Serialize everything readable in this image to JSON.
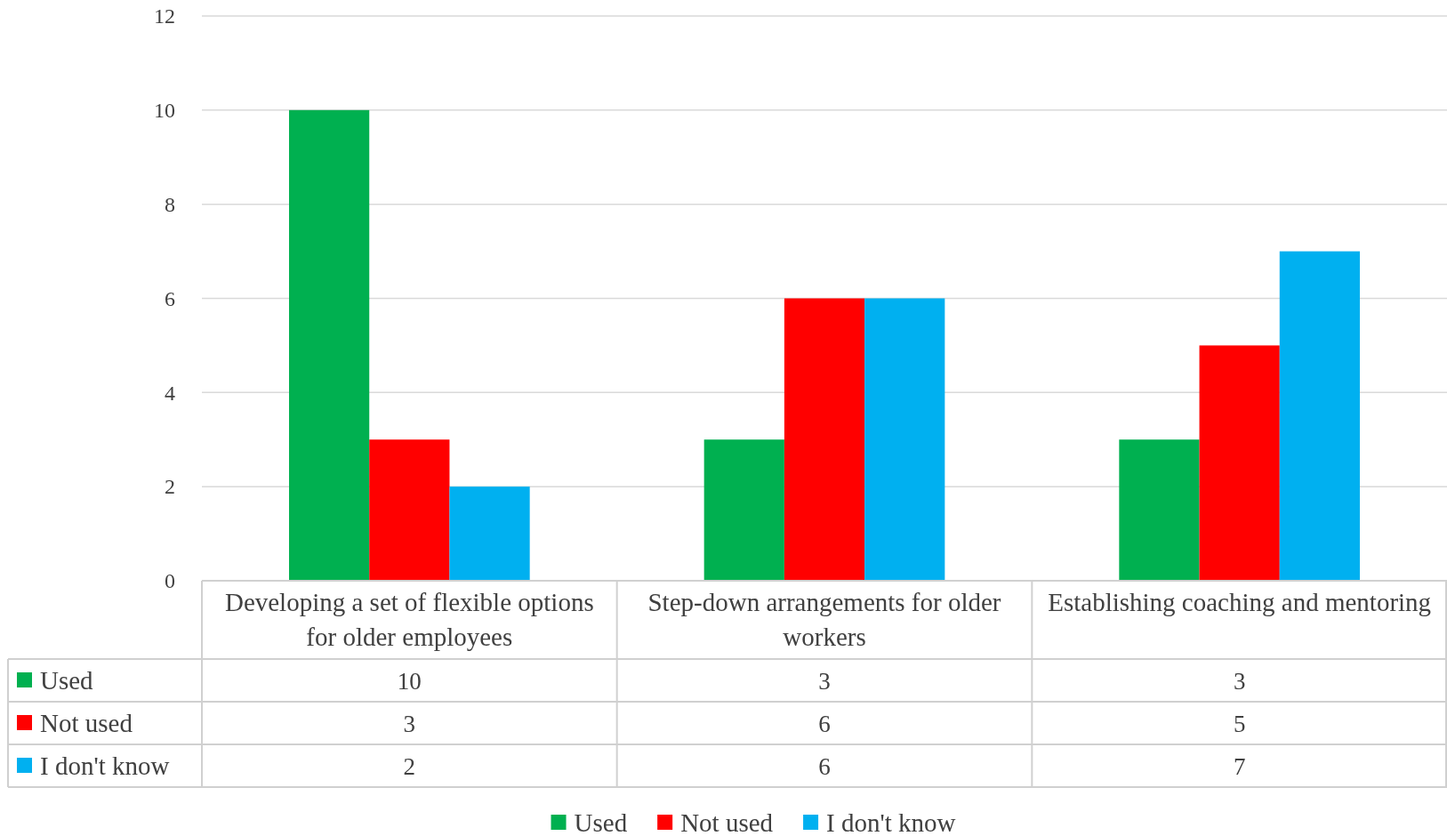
{
  "chart_data": {
    "type": "bar",
    "categories": [
      "Developing a set of flexible options for older employees",
      "Step-down arrangements for older workers",
      "Establishing coaching and mentoring"
    ],
    "series": [
      {
        "name": "Used",
        "color": "#00b050",
        "values": [
          10,
          3,
          3
        ]
      },
      {
        "name": "Not used",
        "color": "#ff0000",
        "values": [
          3,
          6,
          5
        ]
      },
      {
        "name": "I don't know",
        "color": "#00b0f0",
        "values": [
          2,
          6,
          7
        ]
      }
    ],
    "ylim": [
      0,
      12
    ],
    "yticks": [
      0,
      2,
      4,
      6,
      8,
      10,
      12
    ],
    "grid": "y",
    "legend": "bottom",
    "data_labels": true
  }
}
